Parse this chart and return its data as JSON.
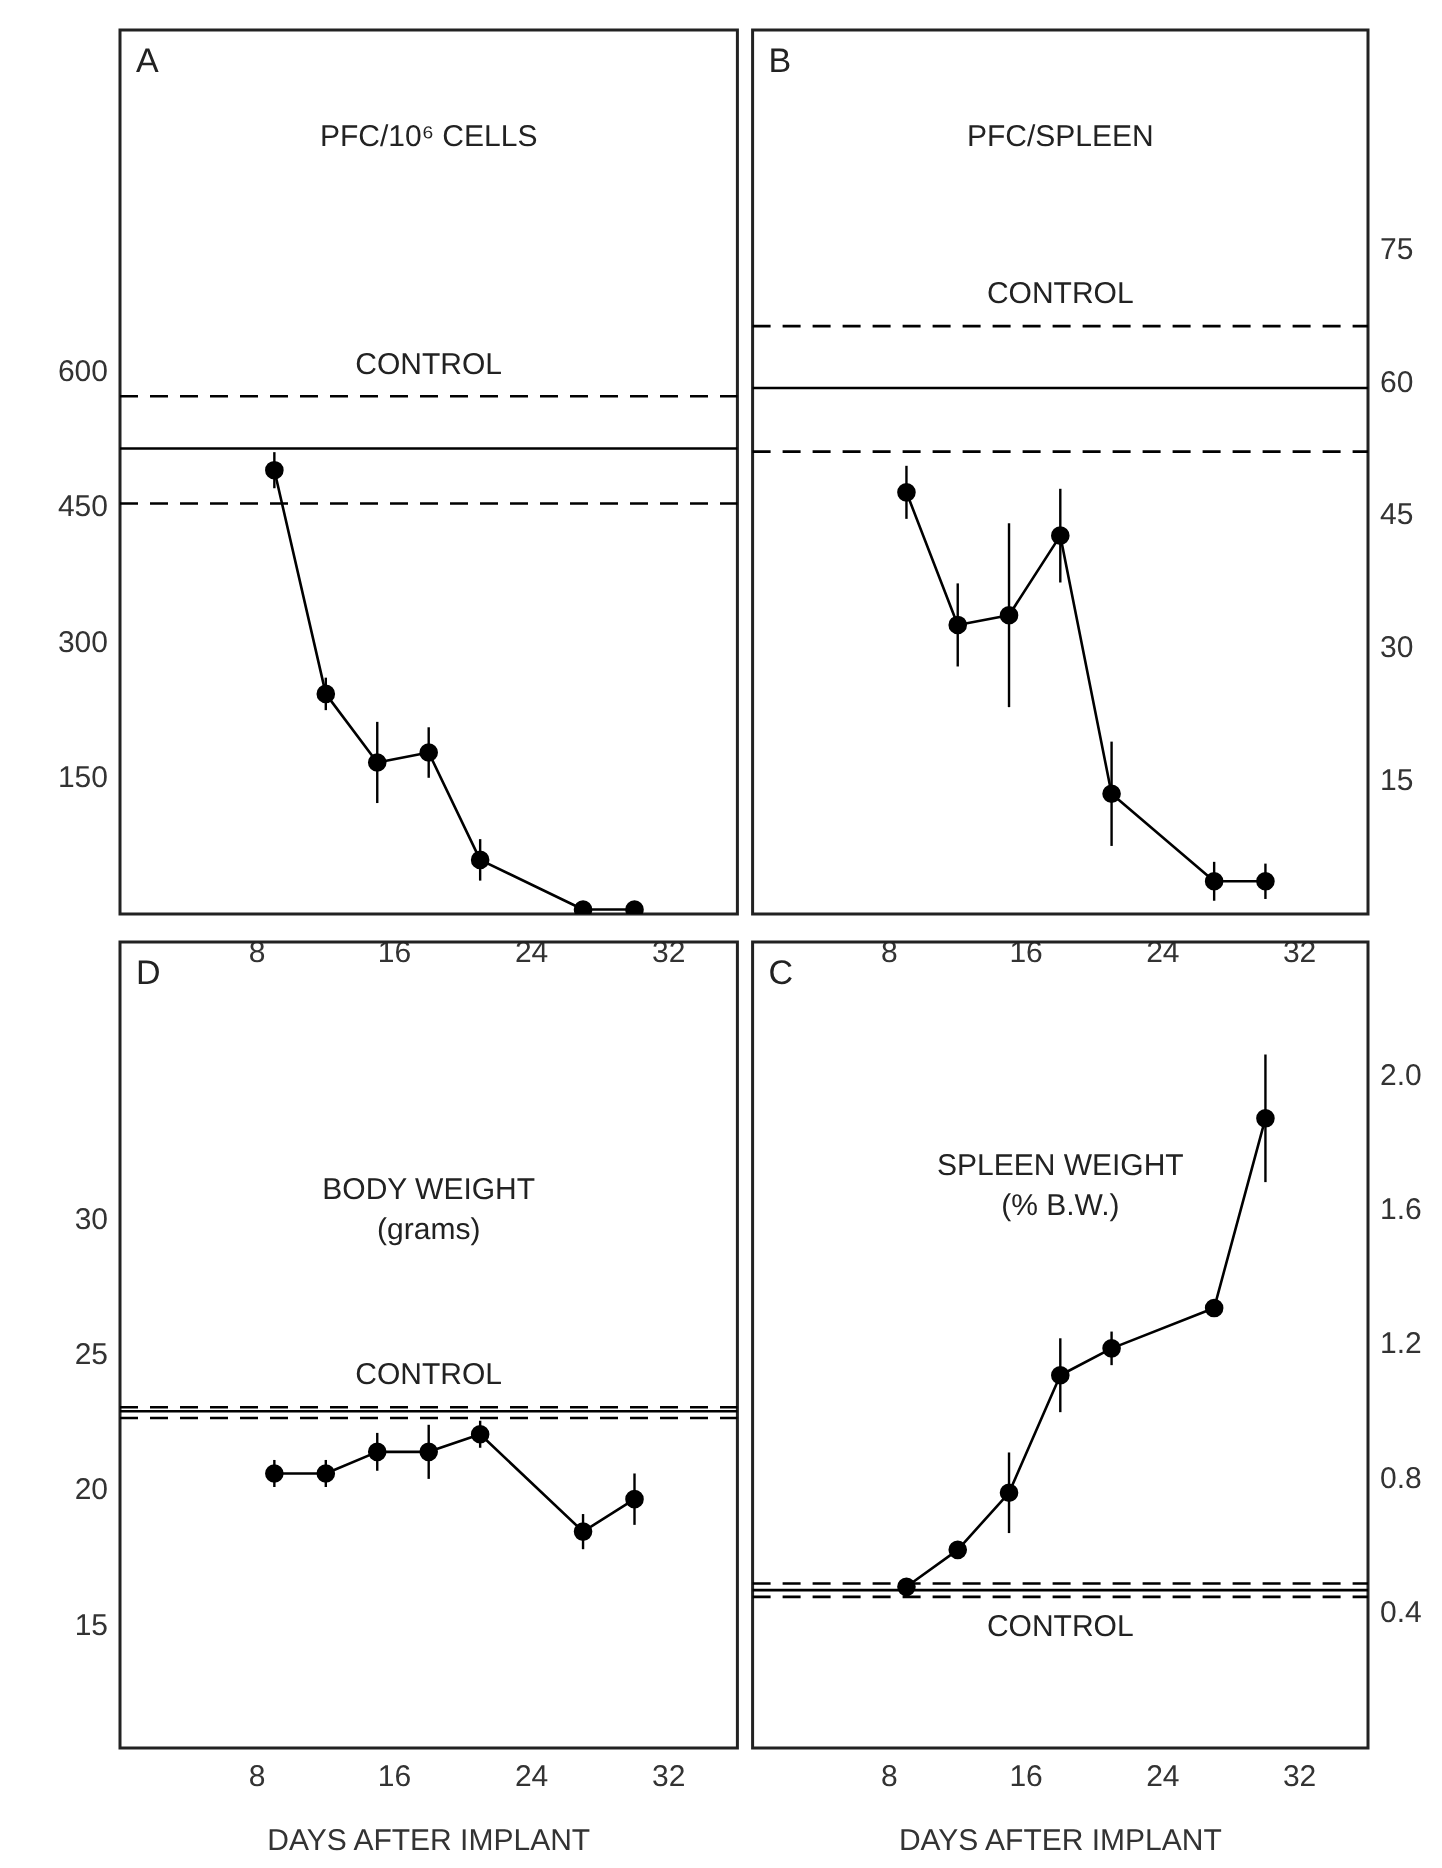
{
  "chart_data": [
    {
      "type": "line",
      "title": "PFC/10⁶ CELLS",
      "annotations": [
        "A"
      ],
      "xlim": [
        0,
        36
      ],
      "xticks": [
        8,
        16,
        24,
        32
      ],
      "ylim": [
        0,
        980
      ],
      "yticks": [
        150,
        300,
        450,
        600
      ],
      "grid": false,
      "legend": false,
      "marker": "circle",
      "line_style": "solid",
      "x": [
        9,
        12,
        15,
        18,
        21,
        27,
        30
      ],
      "series": [
        {
          "color": "#000000",
          "values": [
            492,
            244,
            168,
            179,
            60,
            5,
            5
          ],
          "errors": [
            20,
            18,
            45,
            28,
            23,
            null,
            null
          ]
        }
      ],
      "ref_lines": [
        {
          "axis": "y",
          "value": 516,
          "line_style": "solid",
          "color": "#000000"
        },
        {
          "axis": "y",
          "value": 574,
          "line_style": "dashed",
          "color": "#000000",
          "label": "CONTROL"
        },
        {
          "axis": "y",
          "value": 455,
          "line_style": "dashed",
          "color": "#000000"
        }
      ]
    },
    {
      "type": "line",
      "title": "PFC/SPLEEN",
      "annotations": [
        "B"
      ],
      "xlim": [
        0,
        36
      ],
      "xticks": [
        8,
        16,
        24,
        32
      ],
      "ylim": [
        0,
        100
      ],
      "yticks": [
        15,
        30,
        45,
        60,
        75
      ],
      "grid": false,
      "legend": false,
      "marker": "circle",
      "line_style": "solid",
      "x": [
        9,
        12,
        15,
        18,
        21,
        27,
        30
      ],
      "series": [
        {
          "color": "#000000",
          "values": [
            47.7,
            32.7,
            33.8,
            42.8,
            13.6,
            3.7,
            3.7
          ],
          "errors": [
            3,
            4.7,
            10.4,
            5.3,
            5.9,
            2.2,
            2
          ]
        }
      ],
      "ref_lines": [
        {
          "axis": "y",
          "value": 59.5,
          "line_style": "solid",
          "color": "#000000"
        },
        {
          "axis": "y",
          "value": 66.5,
          "line_style": "dashed",
          "color": "#000000",
          "label": "CONTROL"
        },
        {
          "axis": "y",
          "value": 52.3,
          "line_style": "dashed",
          "color": "#000000"
        }
      ]
    },
    {
      "type": "line",
      "title": "BODY WEIGHT\n(grams)",
      "annotations": [
        "D"
      ],
      "xlabel": "DAYS AFTER IMPLANT",
      "xlim": [
        0,
        36
      ],
      "xticks": [
        8,
        16,
        24,
        32
      ],
      "ylim": [
        10.5,
        40.3
      ],
      "yticks": [
        15,
        20,
        25,
        30
      ],
      "grid": false,
      "legend": false,
      "marker": "circle",
      "line_style": "solid",
      "x": [
        9,
        12,
        15,
        18,
        21,
        27,
        30
      ],
      "series": [
        {
          "color": "#000000",
          "values": [
            20.65,
            20.65,
            21.45,
            21.45,
            22.1,
            18.5,
            19.7
          ],
          "errors": [
            0.5,
            0.5,
            0.7,
            1,
            0.5,
            0.65,
            0.95
          ]
        }
      ],
      "ref_lines": [
        {
          "axis": "y",
          "value": 22.95,
          "line_style": "solid",
          "color": "#000000"
        },
        {
          "axis": "y",
          "value": 23.1,
          "line_style": "dashed",
          "color": "#000000",
          "label": "CONTROL"
        },
        {
          "axis": "y",
          "value": 22.7,
          "line_style": "dashed",
          "color": "#000000"
        }
      ]
    },
    {
      "type": "line",
      "title": "SPLEEN WEIGHT\n(% B.W.)",
      "annotations": [
        "C"
      ],
      "xlabel": "DAYS AFTER IMPLANT",
      "xlim": [
        0,
        36
      ],
      "xticks": [
        8,
        16,
        24,
        32
      ],
      "ylim": [
        0,
        2.4
      ],
      "yticks": [
        0.4,
        0.8,
        1.2,
        1.6,
        {
          "value": 2,
          "label": "2.0"
        }
      ],
      "grid": false,
      "legend": false,
      "marker": "circle",
      "line_style": "solid",
      "x": [
        9,
        12,
        15,
        18,
        21,
        27,
        30
      ],
      "series": [
        {
          "color": "#000000",
          "values": [
            0.48,
            0.59,
            0.76,
            1.11,
            1.19,
            1.31,
            1.875
          ],
          "errors": [
            null,
            0.02,
            0.12,
            0.11,
            0.05,
            null,
            0.19
          ]
        }
      ],
      "ref_lines": [
        {
          "axis": "y",
          "value": 0.47,
          "line_style": "solid",
          "color": "#000000"
        },
        {
          "axis": "y",
          "value": 0.49,
          "line_style": "dashed",
          "color": "#000000"
        },
        {
          "axis": "y",
          "value": 0.45,
          "line_style": "dashed",
          "color": "#000000",
          "label": "CONTROL"
        }
      ]
    }
  ]
}
